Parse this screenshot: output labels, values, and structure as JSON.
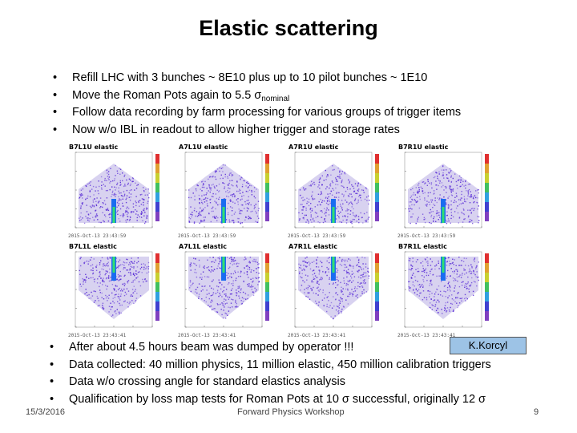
{
  "slide": {
    "title": "Elastic scattering",
    "top_bullets": [
      {
        "text": "Refill LHC with 3 bunches ~ 8E10 plus up to 10 pilot bunches ~ 1E10"
      },
      {
        "text": "Move the Roman Pots again to 5.5 σ",
        "sub": "nominal"
      },
      {
        "text": "Follow data recording by farm processing for various groups of trigger items"
      },
      {
        "text": "Now w/o IBL in readout to allow higher trigger and storage rates"
      }
    ],
    "bottom_bullets": [
      "After about 4.5 hours beam was dumped by operator !!!",
      "Data collected: 40 million physics,  11 million elastic, 450 million calibration triggers",
      "Data w/o crossing angle for standard elastics analysis",
      "Qualification by loss map tests for Roman Pots at 10 σ successful, originally 12  σ"
    ],
    "author_badge": "K.Korcyl",
    "footer": {
      "date": "15/3/2016",
      "center": "Forward Physics Workshop",
      "page": "9"
    }
  },
  "plots": [
    {
      "title": "B7L1U elastic",
      "stamp": "2015-Oct-13 23:43:59"
    },
    {
      "title": "A7L1U elastic",
      "stamp": "2015-Oct-13 23:43:59"
    },
    {
      "title": "A7R1U elastic",
      "stamp": "2015-Oct-13 23:43:59"
    },
    {
      "title": "B7R1U elastic",
      "stamp": "2015-Oct-13 23:43:59"
    },
    {
      "title": "B7L1L elastic",
      "stamp": "2015-Oct-13 23:43:41"
    },
    {
      "title": "A7L1L elastic",
      "stamp": "2015-Oct-13 23:43:41"
    },
    {
      "title": "A7R1L elastic",
      "stamp": "2015-Oct-13 23:43:41"
    },
    {
      "title": "B7R1L elastic",
      "stamp": "2015-Oct-13 23:43:41"
    }
  ],
  "colors": {
    "scatter": "#5b2fd6",
    "core": "#1a6cf0",
    "badge_bg": "#9dc3e6"
  }
}
